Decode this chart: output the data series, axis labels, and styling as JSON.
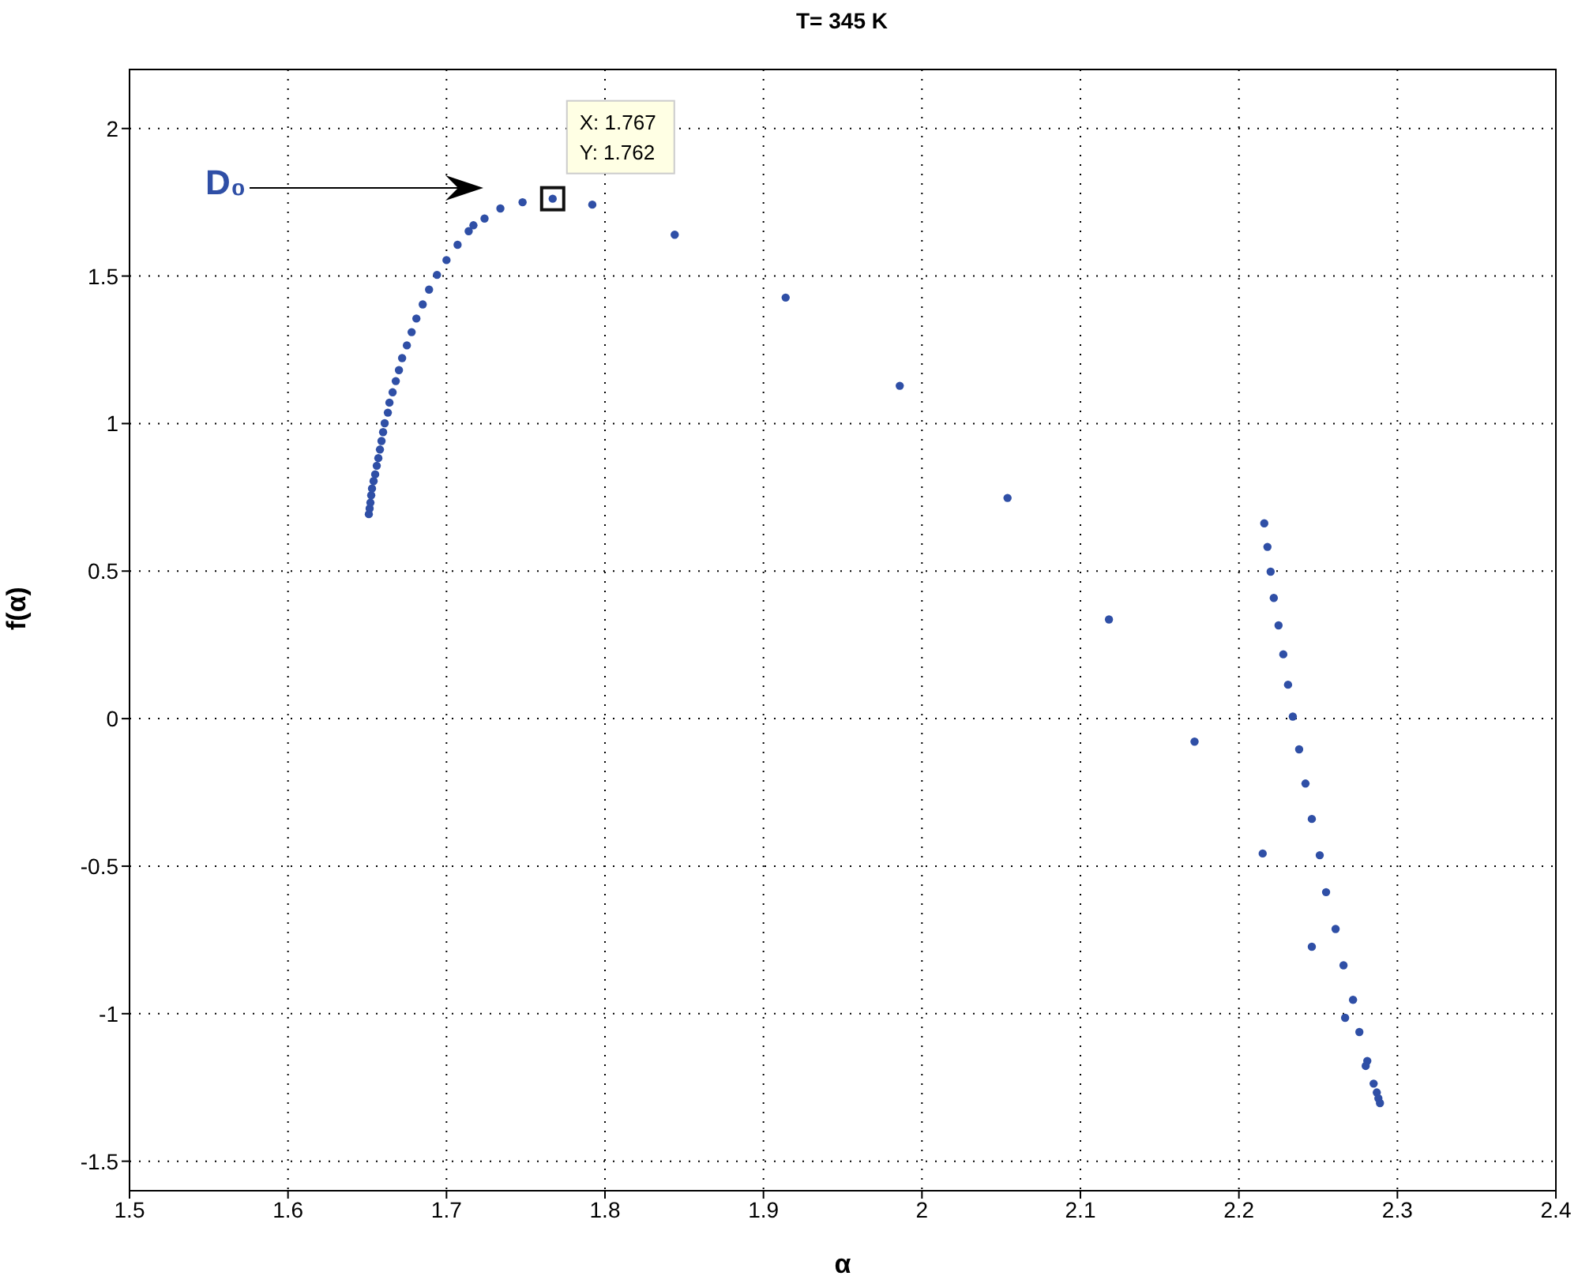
{
  "chart_data": {
    "type": "scatter",
    "title": "T= 345 K",
    "xlabel": "α",
    "ylabel": "f(α)",
    "x": [
      1.651,
      1.6515,
      1.652,
      1.6525,
      1.653,
      1.654,
      1.655,
      1.656,
      1.657,
      1.658,
      1.659,
      1.66,
      1.661,
      1.663,
      1.664,
      1.666,
      1.668,
      1.67,
      1.672,
      1.675,
      1.678,
      1.681,
      1.685,
      1.689,
      1.694,
      1.7,
      1.707,
      1.714,
      1.717,
      1.724,
      1.734,
      1.748,
      1.767,
      1.792,
      1.844,
      1.914,
      1.986,
      2.054,
      2.118,
      2.172,
      2.216,
      2.218,
      2.22,
      2.222,
      2.225,
      2.228,
      2.231,
      2.234,
      2.238,
      2.242,
      2.246,
      2.215,
      2.251,
      2.255,
      2.261,
      2.246,
      2.266,
      2.272,
      2.267,
      2.276,
      2.281,
      2.28,
      2.285,
      2.287,
      2.288,
      2.289
    ],
    "series": [
      {
        "color": "#2f4fa6",
        "values": [
          0.693,
          0.712,
          0.732,
          0.757,
          0.78,
          0.805,
          0.828,
          0.857,
          0.883,
          0.912,
          0.941,
          0.971,
          1.001,
          1.037,
          1.071,
          1.106,
          1.144,
          1.181,
          1.222,
          1.265,
          1.31,
          1.356,
          1.404,
          1.454,
          1.504,
          1.554,
          1.606,
          1.652,
          1.672,
          1.695,
          1.729,
          1.75,
          1.762,
          1.742,
          1.64,
          1.427,
          1.128,
          0.748,
          0.336,
          -0.078,
          0.662,
          0.582,
          0.498,
          0.409,
          0.316,
          0.218,
          0.115,
          0.007,
          -0.104,
          -0.22,
          -0.34,
          -0.457,
          -0.463,
          -0.588,
          -0.713,
          -0.773,
          -0.836,
          -0.953,
          -1.014,
          -1.062,
          -1.16,
          -1.177,
          -1.237,
          -1.267,
          -1.287,
          -1.303
        ]
      }
    ],
    "xlim": [
      1.5,
      2.4
    ],
    "xticks": [
      1.5,
      1.6,
      1.7,
      1.8,
      1.9,
      2,
      2.1,
      2.2,
      2.3,
      2.4
    ],
    "ylim": [
      -1.6,
      2.2
    ],
    "yticks": [
      -1.5,
      -1,
      -0.5,
      0,
      0.5,
      1,
      1.5,
      2
    ],
    "grid": true,
    "marker": "circle",
    "legend": false,
    "annotations": [
      "D₀",
      {
        "text": "X: 1.767\nY: 1.762",
        "x": 1.767,
        "y": 1.762
      }
    ]
  }
}
